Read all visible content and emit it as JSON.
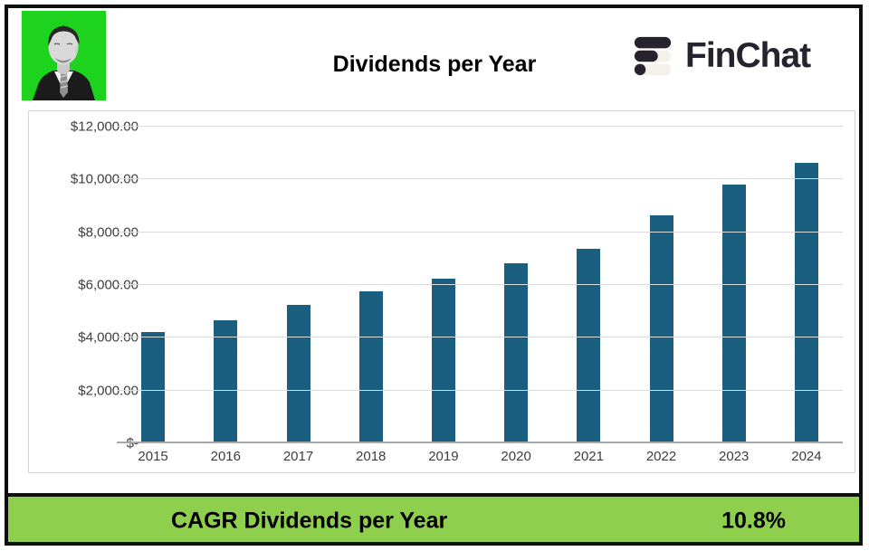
{
  "header": {
    "brand": "FinChat"
  },
  "icons": {
    "logo": "finchat-bars-icon",
    "avatar": "analyst-portrait-photo"
  },
  "colors": {
    "bar": "#1b5f80",
    "band_green": "#8ed04e",
    "avatar_green": "#1dd31d",
    "logo_dark": "#26232e",
    "logo_light": "#f4f1ea",
    "frame": "#0f0f0f",
    "gridline": "#dcdcdc",
    "axis_text": "#3d3d3d"
  },
  "chart_data": {
    "type": "bar",
    "title": "Dividends per Year",
    "categories": [
      "2015",
      "2016",
      "2017",
      "2018",
      "2019",
      "2020",
      "2021",
      "2022",
      "2023",
      "2024"
    ],
    "values": [
      4200,
      4630,
      5200,
      5730,
      6200,
      6780,
      7350,
      8620,
      9760,
      10600
    ],
    "xlabel": "",
    "ylabel": "",
    "ylim": [
      0,
      12000
    ],
    "ytick_values": [
      0,
      2000,
      4000,
      6000,
      8000,
      10000,
      12000
    ],
    "ytick_labels": [
      "$-",
      "$2,000.00",
      "$4,000.00",
      "$6,000.00",
      "$8,000.00",
      "$10,000.00",
      "$12,000.00"
    ],
    "grid": true,
    "legend": false,
    "bar_color": "#1b5f80"
  },
  "footer": {
    "label": "CAGR Dividends per Year",
    "value": "10.8%"
  }
}
